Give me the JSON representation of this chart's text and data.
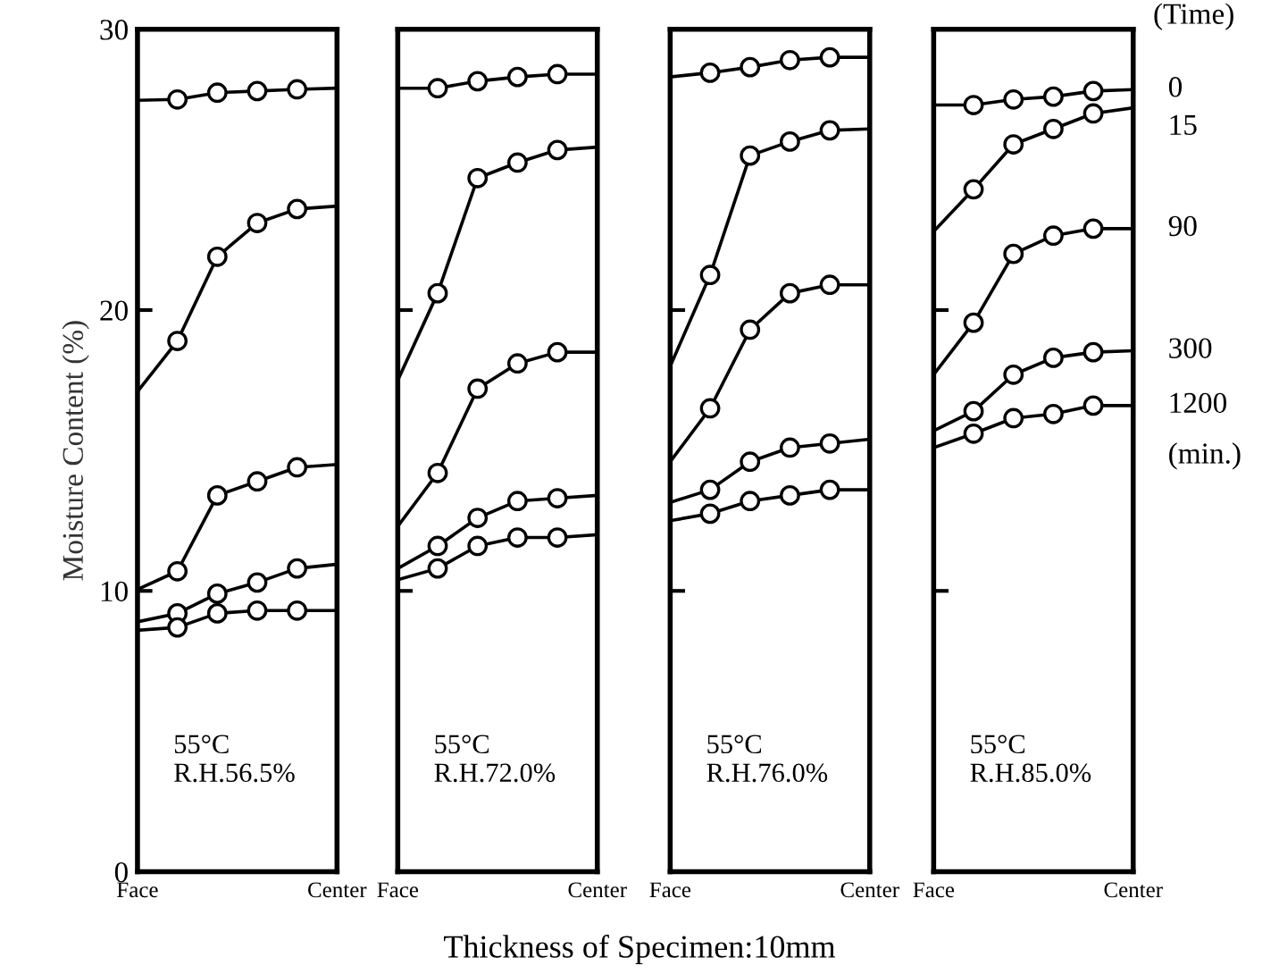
{
  "chart_data": [
    {
      "type": "line",
      "ylabel": "Moisture Content (%)",
      "xlabel": "Thickness of Specimen:10mm",
      "categories": [
        "Face",
        null,
        null,
        null,
        null,
        "Center"
      ],
      "ylim": [
        0,
        30
      ],
      "yticks": [
        0,
        10,
        20,
        30
      ],
      "marker": "circle",
      "line_style": "solid",
      "grid": false,
      "annotations": [
        "55°C\nR.H.56.5%"
      ],
      "series": [
        {
          "color": "#000000",
          "values": [
            27.47,
            27.5,
            27.74,
            27.8,
            27.86,
            27.9
          ]
        },
        {
          "color": "#000000",
          "values": [
            17.1,
            18.9,
            21.9,
            23.1,
            23.6,
            23.7
          ]
        },
        {
          "color": "#000000",
          "values": [
            10.05,
            10.7,
            13.4,
            13.9,
            14.4,
            14.5
          ]
        },
        {
          "color": "#000000",
          "values": [
            8.9,
            9.2,
            9.9,
            10.3,
            10.8,
            10.95
          ]
        },
        {
          "color": "#000000",
          "values": [
            8.6,
            8.7,
            9.2,
            9.3,
            9.3,
            9.3
          ]
        }
      ]
    },
    {
      "type": "line",
      "categories": [
        "Face",
        null,
        null,
        null,
        null,
        "Center"
      ],
      "ylim": [
        0,
        30
      ],
      "yticks": [
        0,
        10,
        20,
        30
      ],
      "tick_labels": "x",
      "marker": "circle",
      "line_style": "solid",
      "grid": false,
      "annotations": [
        "55°C\nR.H.72.0%"
      ],
      "series": [
        {
          "color": "#000000",
          "values": [
            27.9,
            27.9,
            28.15,
            28.3,
            28.4,
            28.4
          ]
        },
        {
          "color": "#000000",
          "values": [
            17.5,
            20.6,
            24.7,
            25.25,
            25.7,
            25.8
          ]
        },
        {
          "color": "#000000",
          "values": [
            12.3,
            14.2,
            17.2,
            18.1,
            18.5,
            18.5
          ]
        },
        {
          "color": "#000000",
          "values": [
            10.8,
            11.6,
            12.6,
            13.2,
            13.3,
            13.4
          ]
        },
        {
          "color": "#000000",
          "values": [
            10.4,
            10.8,
            11.6,
            11.9,
            11.9,
            12.0
          ]
        }
      ]
    },
    {
      "type": "line",
      "categories": [
        "Face",
        null,
        null,
        null,
        null,
        "Center"
      ],
      "ylim": [
        0,
        30
      ],
      "yticks": [
        0,
        10,
        20,
        30
      ],
      "tick_labels": "x",
      "marker": "circle",
      "line_style": "solid",
      "grid": false,
      "annotations": [
        "55°C\nR.H.76.0%"
      ],
      "series": [
        {
          "color": "#000000",
          "values": [
            28.3,
            28.45,
            28.65,
            28.9,
            29.0,
            29.0
          ]
        },
        {
          "color": "#000000",
          "values": [
            18.0,
            21.25,
            25.5,
            26.0,
            26.4,
            26.45
          ]
        },
        {
          "color": "#000000",
          "values": [
            14.6,
            16.5,
            19.3,
            20.6,
            20.9,
            20.9
          ]
        },
        {
          "color": "#000000",
          "values": [
            13.15,
            13.6,
            14.6,
            15.1,
            15.25,
            15.4
          ]
        },
        {
          "color": "#000000",
          "values": [
            12.5,
            12.75,
            13.2,
            13.4,
            13.6,
            13.6
          ]
        }
      ]
    },
    {
      "type": "line",
      "categories": [
        "Face",
        null,
        null,
        null,
        null,
        "Center"
      ],
      "ylim": [
        0,
        30
      ],
      "yticks": [
        0,
        10,
        20,
        30
      ],
      "tick_labels": "x",
      "marker": "circle",
      "line_style": "solid",
      "grid": false,
      "legend_title": "(Time)",
      "annotations": [
        "55°C\nR.H.85.0%",
        "(min.)"
      ],
      "series": [
        {
          "name": "0",
          "color": "#000000",
          "values": [
            27.3,
            27.3,
            27.5,
            27.6,
            27.8,
            27.85
          ]
        },
        {
          "name": "15",
          "color": "#000000",
          "values": [
            22.8,
            24.3,
            25.9,
            26.45,
            27.0,
            27.2
          ]
        },
        {
          "name": "90",
          "color": "#000000",
          "values": [
            17.7,
            19.55,
            22.0,
            22.65,
            22.9,
            22.9
          ]
        },
        {
          "name": "300",
          "color": "#000000",
          "values": [
            15.7,
            16.4,
            17.7,
            18.3,
            18.5,
            18.55
          ]
        },
        {
          "name": "1200",
          "color": "#000000",
          "values": [
            15.1,
            15.6,
            16.15,
            16.3,
            16.6,
            16.6
          ]
        }
      ]
    }
  ]
}
